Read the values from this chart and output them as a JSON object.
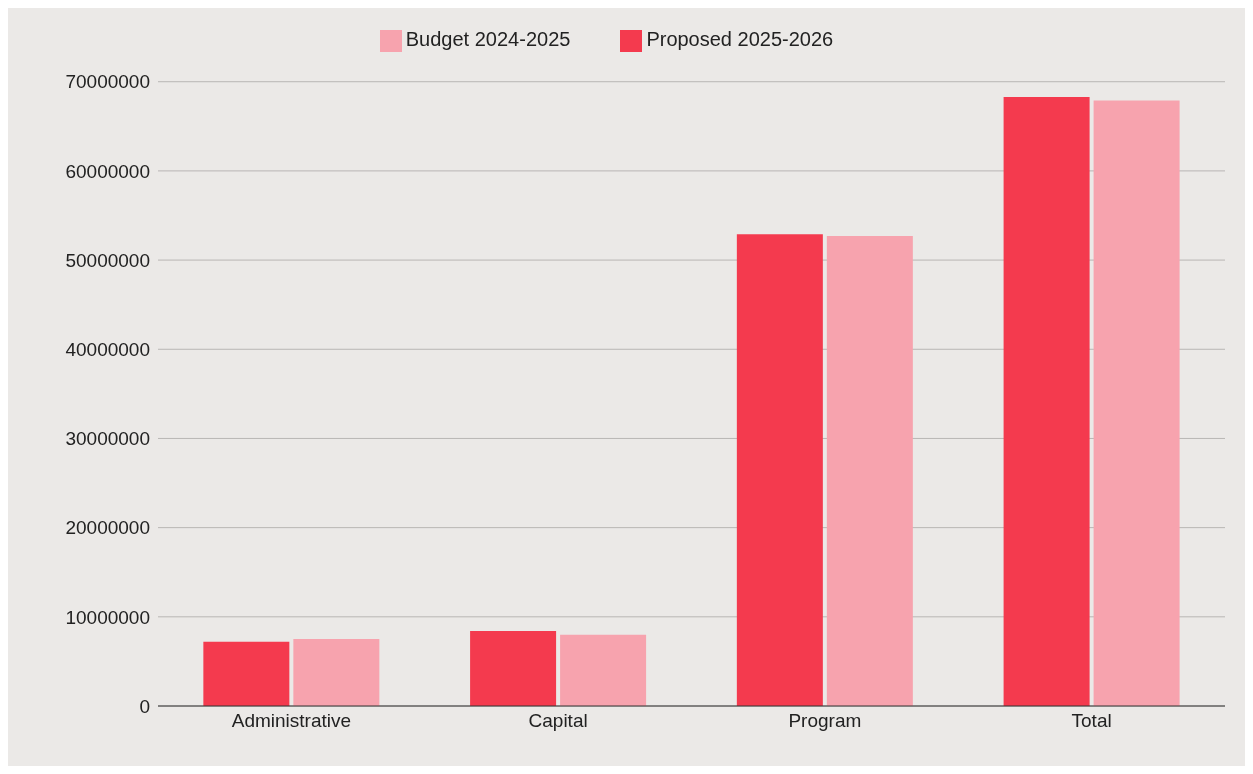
{
  "chart_data": {
    "type": "bar",
    "categories": [
      "Administrative",
      "Capital",
      "Program",
      "Total"
    ],
    "series": [
      {
        "name": "Proposed 2025-2026",
        "color": "#f43a4e",
        "values": [
          7200000,
          8400000,
          52900000,
          68300000
        ]
      },
      {
        "name": "Budget 2024-2025",
        "color": "#f7a3ae",
        "values": [
          7500000,
          8000000,
          52700000,
          67900000
        ]
      }
    ],
    "ylim": [
      0,
      70000000
    ],
    "yticks": [
      0,
      10000000,
      20000000,
      30000000,
      40000000,
      50000000,
      60000000,
      70000000
    ],
    "grid": "y",
    "legend": "top"
  }
}
